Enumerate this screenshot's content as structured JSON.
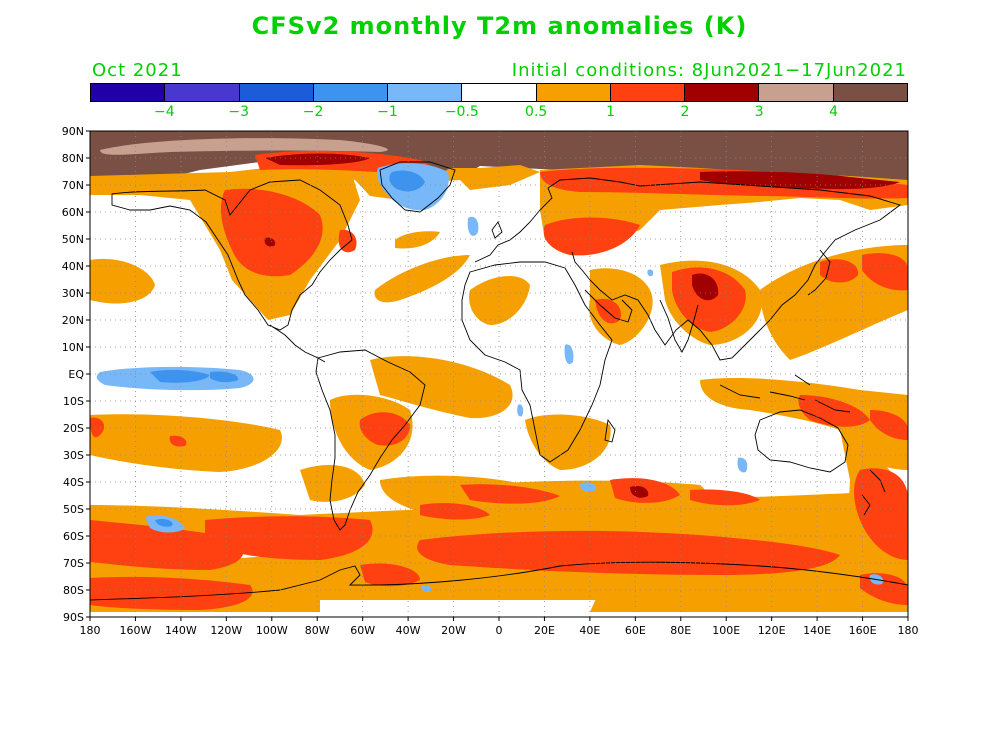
{
  "title": "CFSv2 monthly T2m anomalies (K)",
  "month_label": "Oct 2021",
  "init_label": "Initial conditions: 8Jun2021−17Jun2021",
  "colorbar": {
    "colors": [
      "#2200a8",
      "#4838d0",
      "#1c5cd8",
      "#3c94f0",
      "#78b8f8",
      "#ffffff",
      "#f5a000",
      "#ff4010",
      "#a00000",
      "#c8a090",
      "#7a5044"
    ],
    "tick_labels": [
      "−4",
      "−3",
      "−2",
      "−1",
      "−0.5",
      "0.5",
      "1",
      "2",
      "3",
      "4"
    ]
  },
  "axes": {
    "lat_labels": [
      "90N",
      "80N",
      "70N",
      "60N",
      "50N",
      "40N",
      "30N",
      "20N",
      "10N",
      "EQ",
      "10S",
      "20S",
      "30S",
      "40S",
      "50S",
      "60S",
      "70S",
      "80S",
      "90S"
    ],
    "lon_labels": [
      "180",
      "160W",
      "140W",
      "120W",
      "100W",
      "80W",
      "60W",
      "40W",
      "20W",
      "0",
      "20E",
      "40E",
      "60E",
      "80E",
      "100E",
      "120E",
      "140E",
      "160E",
      "180"
    ]
  },
  "map_colors": {
    "orange": "#f5a000",
    "red": "#ff4010",
    "dark_red": "#a00000",
    "light_blue": "#78b8f8",
    "blue": "#3c94f0",
    "pink": "#c8a090",
    "brown": "#7a5044"
  }
}
